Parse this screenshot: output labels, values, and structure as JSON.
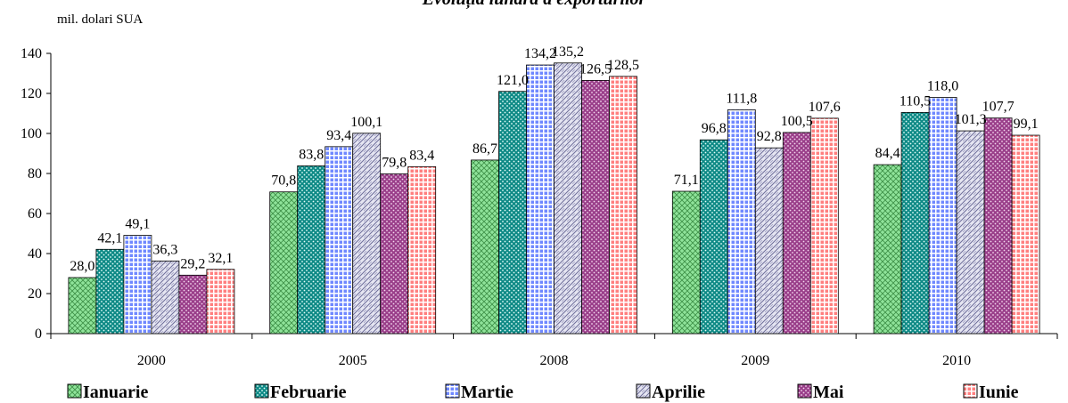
{
  "chart_data": {
    "type": "bar",
    "title": "Evoluția lunară a exporturilor",
    "ylabel": "mil. dolari SUA",
    "xlabel": "",
    "categories": [
      "2000",
      "2005",
      "2008",
      "2009",
      "2010"
    ],
    "ylim": [
      0,
      140
    ],
    "yticks": [
      0,
      20,
      40,
      60,
      80,
      100,
      120,
      140
    ],
    "legend_position": "bottom",
    "grid": false,
    "series": [
      {
        "name": "Ianuarie",
        "values": [
          28.0,
          70.8,
          86.7,
          71.1,
          84.4
        ],
        "labels": [
          "28,0",
          "70,8",
          "86,7",
          "71,1",
          "84,4"
        ],
        "color": "#8fe39a",
        "pattern": "crosshatch"
      },
      {
        "name": "Februarie",
        "values": [
          42.1,
          83.8,
          121.0,
          96.8,
          110.5
        ],
        "labels": [
          "42,1",
          "83,8",
          "121,0",
          "96,8",
          "110,5"
        ],
        "color": "#0f8a86",
        "pattern": "dots"
      },
      {
        "name": "Martie",
        "values": [
          49.1,
          93.4,
          134.2,
          111.8,
          118.0
        ],
        "labels": [
          "49,1",
          "93,4",
          "134,2",
          "111,8",
          "118,0"
        ],
        "color": "#6f88ff",
        "pattern": "grid"
      },
      {
        "name": "Aprilie",
        "values": [
          36.3,
          100.1,
          135.2,
          92.8,
          101.3
        ],
        "labels": [
          "36,3",
          "100,1",
          "135,2",
          "92,8",
          "101,3"
        ],
        "color": "#b8b8d2",
        "pattern": "weave"
      },
      {
        "name": "Mai",
        "values": [
          29.2,
          79.8,
          126.5,
          100.5,
          107.7
        ],
        "labels": [
          "29,2",
          "79,8",
          "126,5",
          "100,5",
          "107,7"
        ],
        "color": "#9a3f8a",
        "pattern": "dots"
      },
      {
        "name": "Iunie",
        "values": [
          32.1,
          83.4,
          128.5,
          107.6,
          99.1
        ],
        "labels": [
          "32,1",
          "83,4",
          "128,5",
          "107,6",
          "99,1"
        ],
        "color": "#ff7f7f",
        "pattern": "grid"
      }
    ]
  }
}
